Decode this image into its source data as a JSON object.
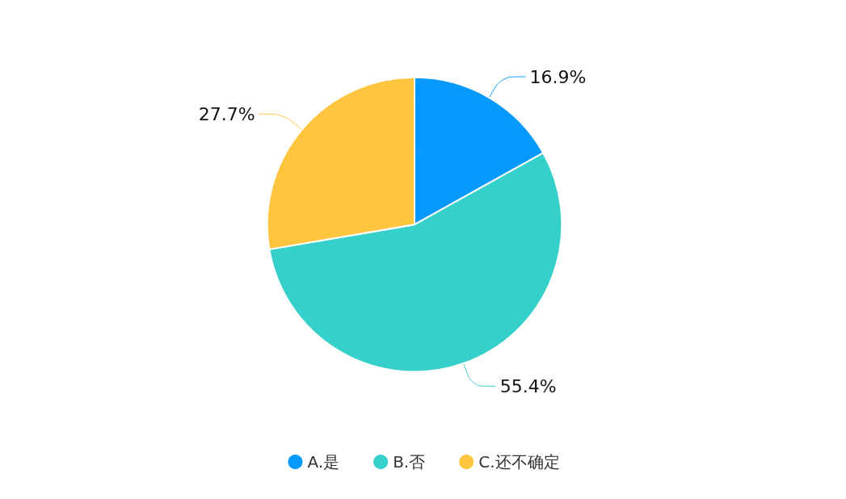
{
  "chart_data": {
    "type": "pie",
    "categories": [
      "A.是",
      "B.否",
      "C.还不确定"
    ],
    "values": [
      16.9,
      55.4,
      27.7
    ],
    "colors": [
      "#0399ff",
      "#36d0cb",
      "#ffc53f"
    ],
    "value_labels": [
      "16.9%",
      "55.4%",
      "27.7%"
    ],
    "legend": "bottom"
  }
}
